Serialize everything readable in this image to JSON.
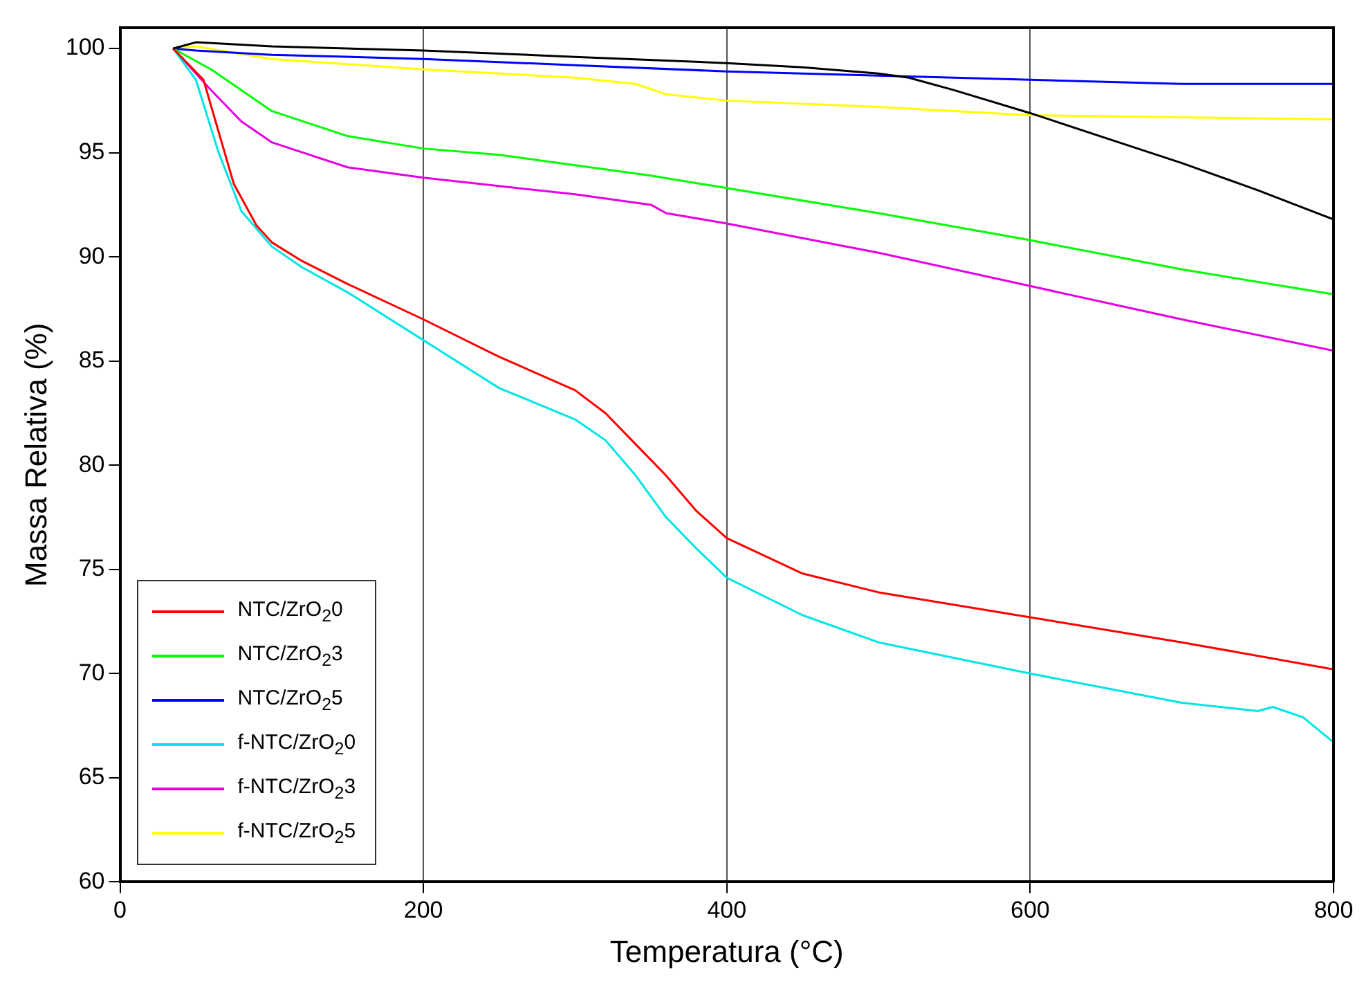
{
  "chart_data": {
    "type": "line",
    "xlabel": "Temperatura (°C)",
    "ylabel": "Massa Relativa (%)",
    "xlim": [
      0,
      800
    ],
    "xticks": [
      0,
      200,
      400,
      600,
      800
    ],
    "ylim": [
      60,
      101
    ],
    "yticks": [
      60,
      65,
      70,
      75,
      80,
      85,
      90,
      95,
      100
    ],
    "grid": "x",
    "legend": "bottom left",
    "marker": "none",
    "line_style": "solid",
    "series": [
      {
        "color": "#000000",
        "x": [
          35,
          50,
          100,
          200,
          300,
          400,
          450,
          500,
          520,
          550,
          600,
          650,
          700,
          750,
          800
        ],
        "values": [
          100,
          100.3,
          100.1,
          99.9,
          99.6,
          99.3,
          99.1,
          98.8,
          98.6,
          98.0,
          96.9,
          95.7,
          94.5,
          93.2,
          91.8
        ]
      },
      {
        "name": "NTC/ZrO$_{2}$0",
        "color": "#ff0000",
        "x": [
          35,
          55,
          65,
          75,
          90,
          100,
          120,
          150,
          200,
          250,
          300,
          320,
          340,
          360,
          380,
          400,
          450,
          500,
          600,
          700,
          800
        ],
        "values": [
          100,
          98.5,
          96,
          93.5,
          91.5,
          90.7,
          89.8,
          88.7,
          87.0,
          85.2,
          83.6,
          82.5,
          81,
          79.5,
          77.8,
          76.5,
          74.8,
          73.9,
          72.7,
          71.5,
          70.2
        ]
      },
      {
        "name": "NTC/ZrO$_{2}$3",
        "color": "#00ff00",
        "x": [
          35,
          60,
          80,
          100,
          150,
          200,
          250,
          300,
          350,
          400,
          500,
          600,
          700,
          800
        ],
        "values": [
          100,
          99,
          98,
          97.0,
          95.8,
          95.2,
          94.9,
          94.4,
          93.9,
          93.3,
          92.1,
          90.8,
          89.4,
          88.2
        ]
      },
      {
        "name": "NTC/ZrO$_{2}$5",
        "color": "#0000ff",
        "x": [
          35,
          50,
          100,
          200,
          300,
          400,
          500,
          600,
          700,
          800
        ],
        "values": [
          100,
          99.9,
          99.7,
          99.5,
          99.2,
          98.9,
          98.7,
          98.5,
          98.3,
          98.3
        ]
      },
      {
        "name": "f-NTC/ZrO$_{2}$0",
        "color": "#00e5e5",
        "x": [
          35,
          50,
          65,
          80,
          100,
          120,
          150,
          200,
          250,
          300,
          320,
          340,
          360,
          380,
          400,
          450,
          500,
          600,
          700,
          750,
          760,
          780,
          790,
          800
        ],
        "values": [
          100,
          98.5,
          95,
          92.2,
          90.5,
          89.5,
          88.3,
          86.0,
          83.7,
          82.2,
          81.2,
          79.5,
          77.5,
          76,
          74.6,
          72.8,
          71.5,
          70.0,
          68.6,
          68.2,
          68.4,
          67.9,
          67.3,
          66.7
        ]
      },
      {
        "name": "f-NTC/ZrO$_{2}$3",
        "color": "#e600e6",
        "x": [
          35,
          60,
          80,
          100,
          150,
          200,
          300,
          350,
          360,
          400,
          500,
          600,
          700,
          800
        ],
        "values": [
          100,
          98,
          96.5,
          95.5,
          94.3,
          93.8,
          93.0,
          92.5,
          92.1,
          91.6,
          90.2,
          88.6,
          87.0,
          85.5
        ]
      },
      {
        "name": "f-NTC/ZrO$_{2}$5",
        "color": "#ffff00",
        "x": [
          35,
          50,
          100,
          200,
          300,
          340,
          360,
          400,
          500,
          600,
          700,
          800
        ],
        "values": [
          100,
          100.1,
          99.5,
          99.0,
          98.6,
          98.3,
          97.8,
          97.5,
          97.2,
          96.8,
          96.7,
          96.6
        ]
      }
    ]
  }
}
